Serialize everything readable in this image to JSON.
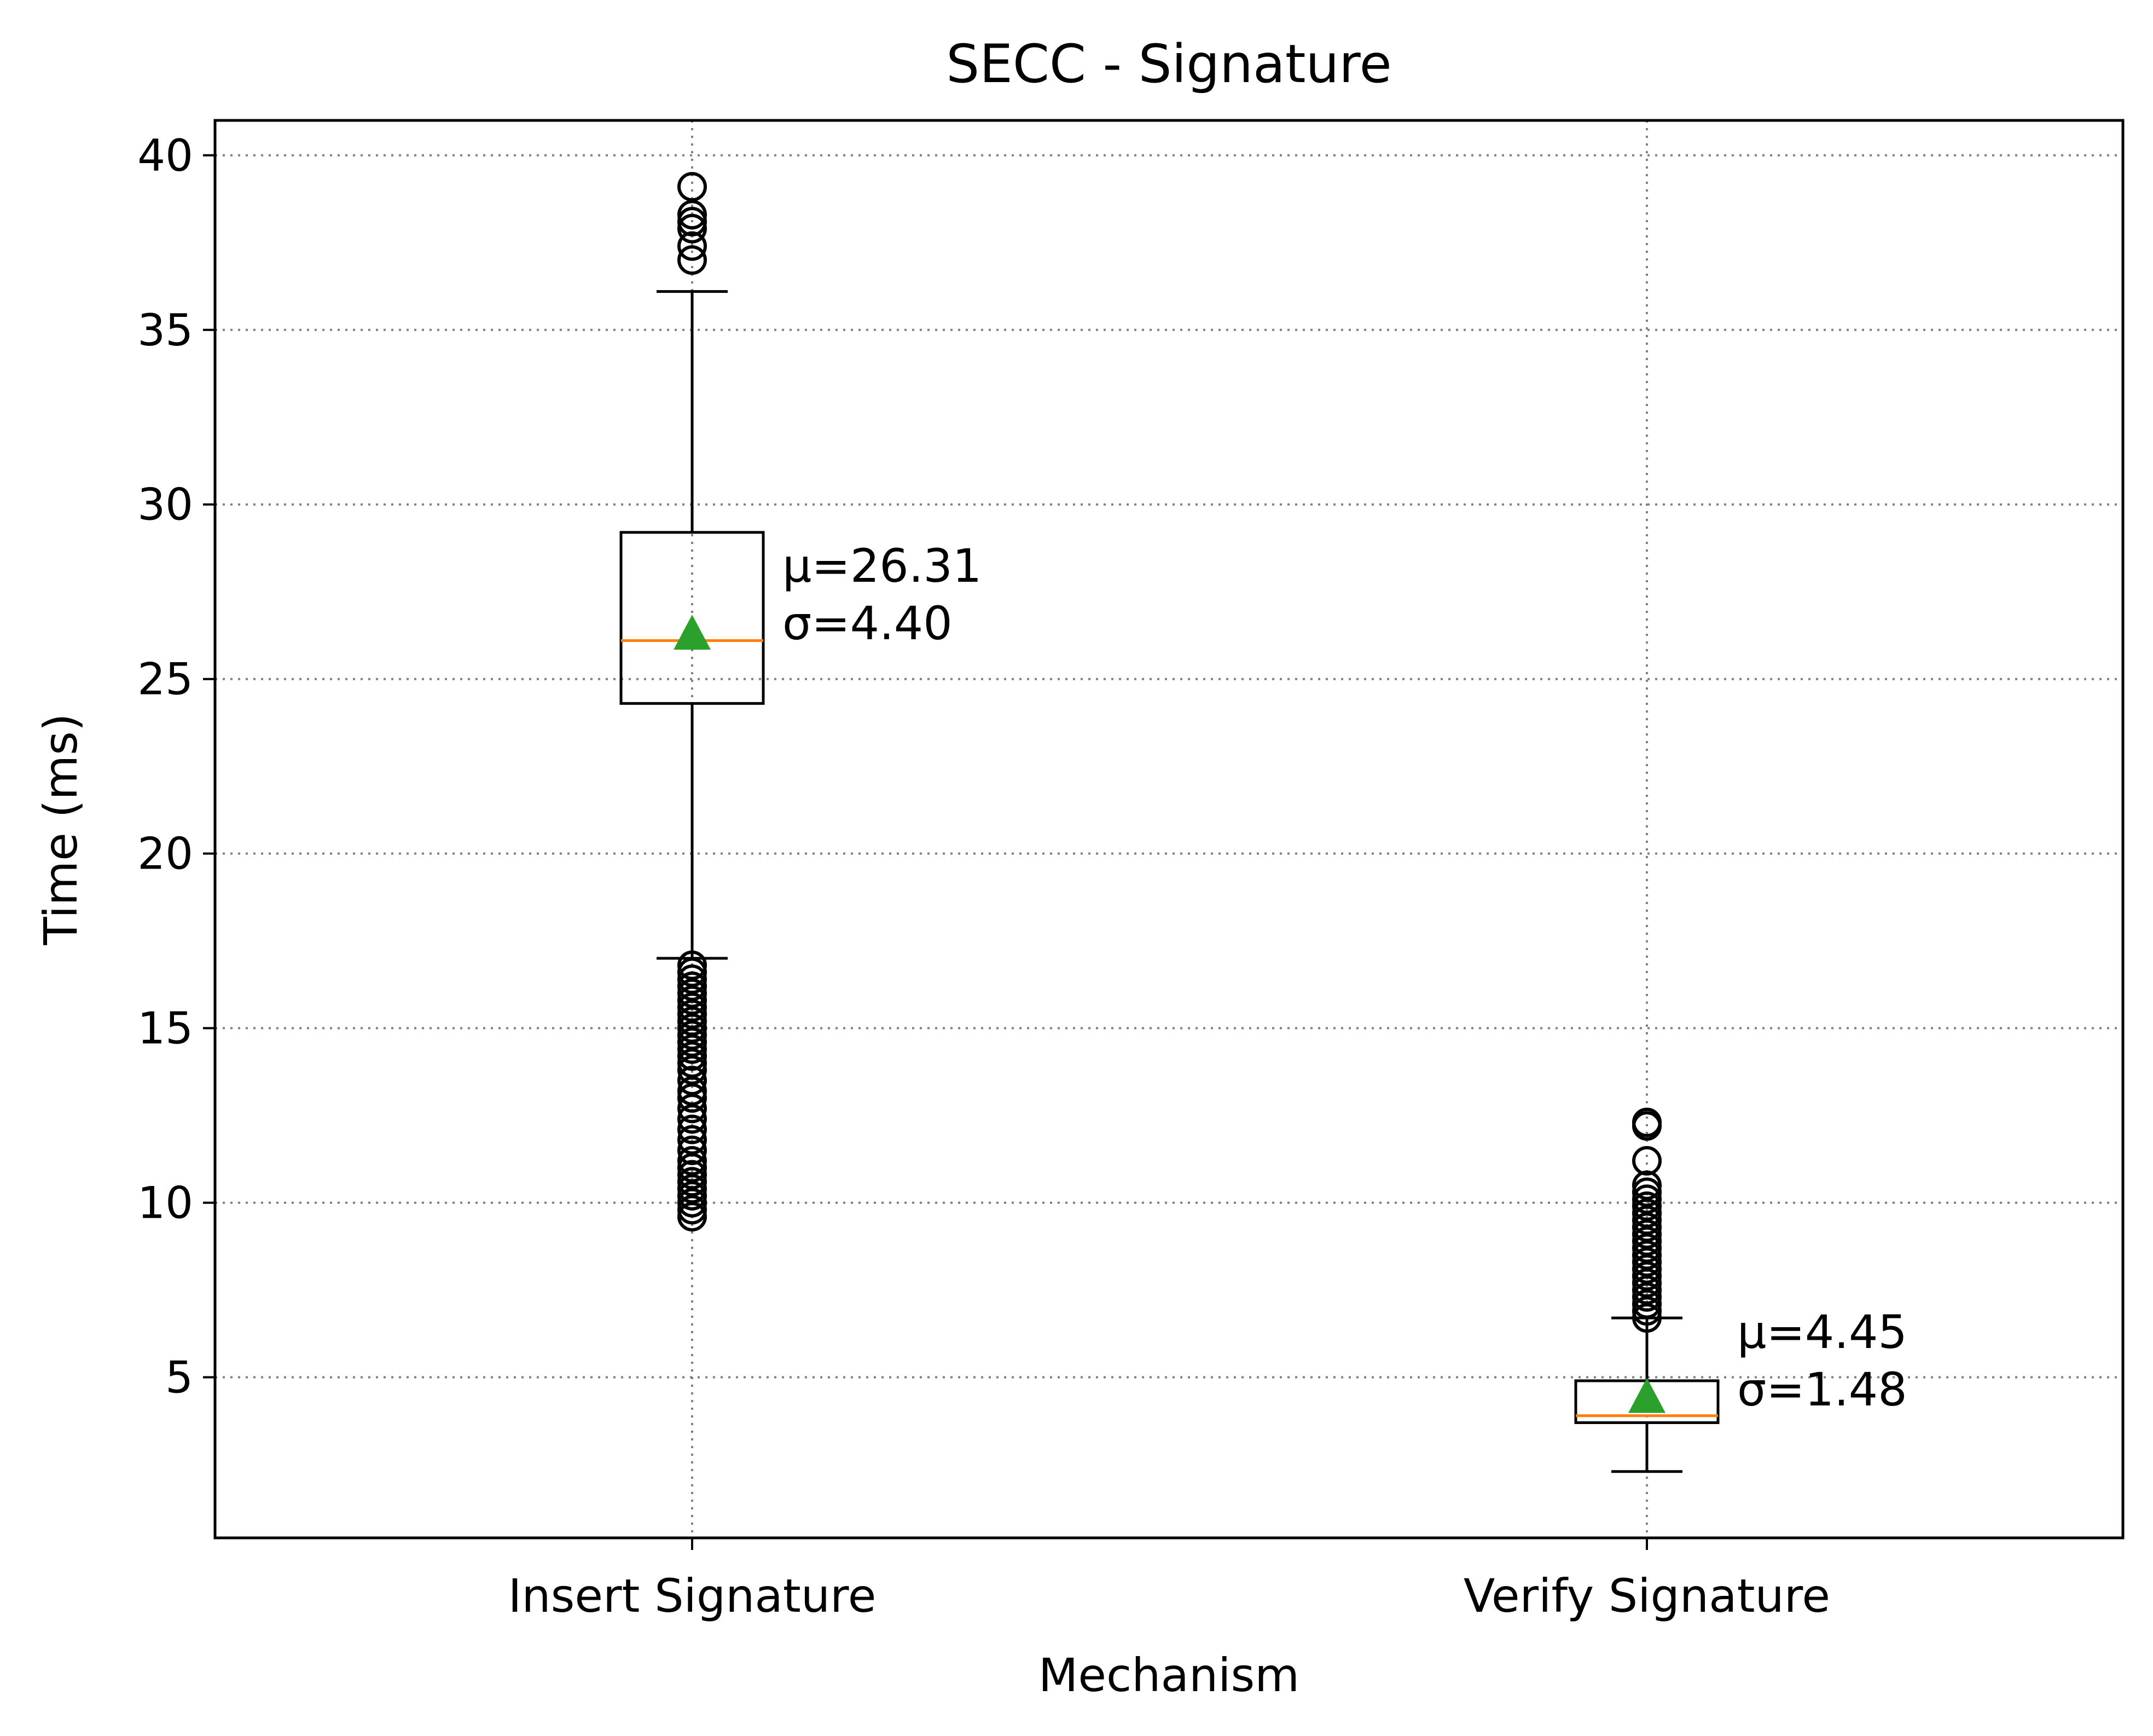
{
  "chart_data": {
    "type": "box",
    "title": "SECC - Signature",
    "xlabel": "Mechanism",
    "ylabel": "Time (ms)",
    "ylim": [
      0.4,
      41
    ],
    "yticks": [
      5,
      10,
      15,
      20,
      25,
      30,
      35,
      40
    ],
    "grid": true,
    "categories": [
      "Insert Signature",
      "Verify Signature"
    ],
    "boxes": [
      {
        "category": "Insert Signature",
        "whisker_low": 17.0,
        "q1": 24.3,
        "median": 26.1,
        "q3": 29.2,
        "whisker_high": 36.1,
        "mean": 26.31,
        "std": 4.4,
        "mean_label": "μ=26.31",
        "std_label": "σ=4.40",
        "outliers": [
          39.1,
          38.3,
          38.1,
          37.9,
          37.4,
          37.0,
          16.8,
          16.6,
          16.4,
          16.2,
          16.0,
          15.8,
          15.6,
          15.4,
          15.2,
          15.0,
          14.8,
          14.6,
          14.4,
          14.2,
          14.0,
          13.8,
          13.5,
          13.2,
          13.0,
          12.7,
          12.4,
          12.1,
          11.8,
          11.5,
          11.2,
          11.0,
          10.8,
          10.6,
          10.4,
          10.2,
          10.0,
          9.8,
          9.6
        ]
      },
      {
        "category": "Verify Signature",
        "whisker_low": 2.3,
        "q1": 3.7,
        "median": 3.9,
        "q3": 4.9,
        "whisker_high": 6.7,
        "mean": 4.45,
        "std": 1.48,
        "mean_label": "μ=4.45",
        "std_label": "σ=1.48",
        "outliers": [
          12.3,
          12.2,
          11.2,
          10.5,
          10.3,
          10.1,
          9.9,
          9.7,
          9.5,
          9.3,
          9.1,
          8.9,
          8.7,
          8.5,
          8.3,
          8.1,
          7.9,
          7.7,
          7.5,
          7.3,
          7.1,
          6.9,
          6.7
        ]
      }
    ],
    "colors": {
      "median": "#ff7f0e",
      "mean_marker": "#2ca02c",
      "grid": "#808080",
      "axis": "#000000"
    }
  }
}
